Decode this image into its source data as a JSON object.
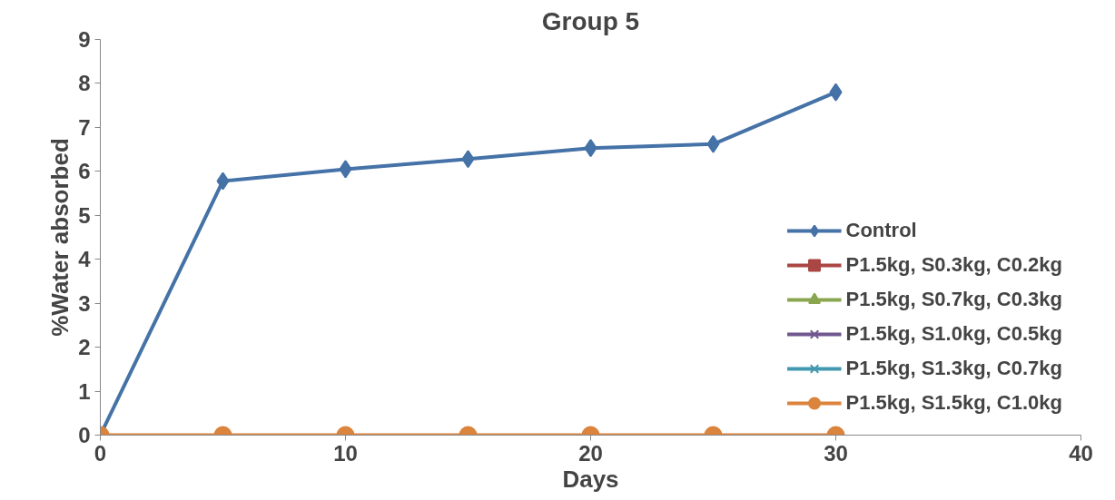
{
  "chart_data": {
    "type": "line",
    "title": "Group 5",
    "xlabel": "Days",
    "ylabel": "%Water absorbed",
    "x": [
      0,
      5,
      10,
      15,
      20,
      25,
      30
    ],
    "series": [
      {
        "name": "Control",
        "color": "#4572a7",
        "marker": "diamond",
        "values": [
          0,
          5.78,
          6.05,
          6.28,
          6.53,
          6.62,
          7.8
        ]
      },
      {
        "name": "P1.5kg, S0.3kg, C0.2kg",
        "color": "#aa4643",
        "marker": "square",
        "values": [
          null,
          null,
          null,
          null,
          null,
          null,
          null
        ]
      },
      {
        "name": "P1.5kg, S0.7kg, C0.3kg",
        "color": "#89a54e",
        "marker": "triangle",
        "values": [
          null,
          null,
          null,
          null,
          null,
          null,
          null
        ]
      },
      {
        "name": "P1.5kg, S1.0kg, C0.5kg",
        "color": "#71588f",
        "marker": "cross",
        "values": [
          null,
          null,
          null,
          null,
          null,
          null,
          null
        ]
      },
      {
        "name": "P1.5kg, S1.3kg, C0.7kg",
        "color": "#4198af",
        "marker": "cross",
        "values": [
          null,
          null,
          null,
          null,
          null,
          null,
          null
        ]
      },
      {
        "name": "P1.5kg, S1.5kg, C1.0kg",
        "color": "#db843d",
        "marker": "circle",
        "values": [
          0,
          0,
          0,
          0,
          0,
          0,
          0
        ]
      }
    ],
    "xlim": [
      0,
      40
    ],
    "xticks": [
      0,
      10,
      20,
      30,
      40
    ],
    "ylim": [
      0,
      9
    ],
    "yticks": [
      0,
      1,
      2,
      3,
      4,
      5,
      6,
      7,
      8,
      9
    ],
    "grid": false,
    "legend": "bottom right",
    "line_style": "solid"
  }
}
